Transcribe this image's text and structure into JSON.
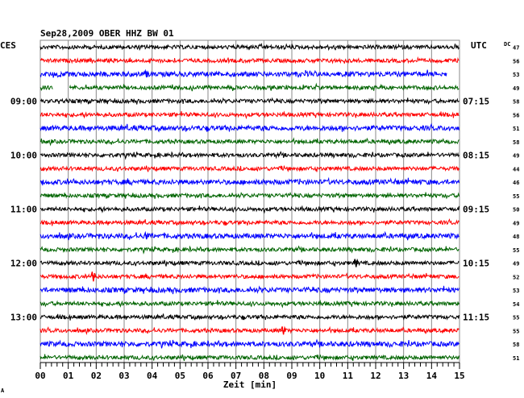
{
  "chart_data": {
    "type": "line",
    "title": "Sep28,2009   OBER HHZ BW 01",
    "left_zone": "CES",
    "right_zone": "UTC",
    "dc_label": "DC",
    "xlabel": "Zeit [min]",
    "xlim": [
      0,
      15
    ],
    "x_ticks": [
      "00",
      "01",
      "02",
      "03",
      "04",
      "05",
      "06",
      "07",
      "08",
      "09",
      "10",
      "11",
      "12",
      "13",
      "14",
      "15"
    ],
    "left_hour_labels": [
      {
        "row": 4,
        "text": "09:00"
      },
      {
        "row": 8,
        "text": "10:00"
      },
      {
        "row": 12,
        "text": "11:00"
      },
      {
        "row": 16,
        "text": "12:00"
      },
      {
        "row": 20,
        "text": "13:00"
      }
    ],
    "right_hour_labels": [
      {
        "row": 4,
        "text": "07:15"
      },
      {
        "row": 8,
        "text": "08:15"
      },
      {
        "row": 12,
        "text": "09:15"
      },
      {
        "row": 16,
        "text": "10:15"
      },
      {
        "row": 20,
        "text": "11:15"
      }
    ],
    "dc_values": [
      47,
      56,
      53,
      49,
      58,
      56,
      51,
      58,
      49,
      44,
      46,
      55,
      50,
      49,
      48,
      55,
      49,
      52,
      53,
      54,
      55,
      55,
      58,
      51
    ],
    "trace_colors": [
      "#000000",
      "#ff0000",
      "#0000ff",
      "#006400"
    ],
    "grid": true,
    "footer_mark": "A"
  }
}
